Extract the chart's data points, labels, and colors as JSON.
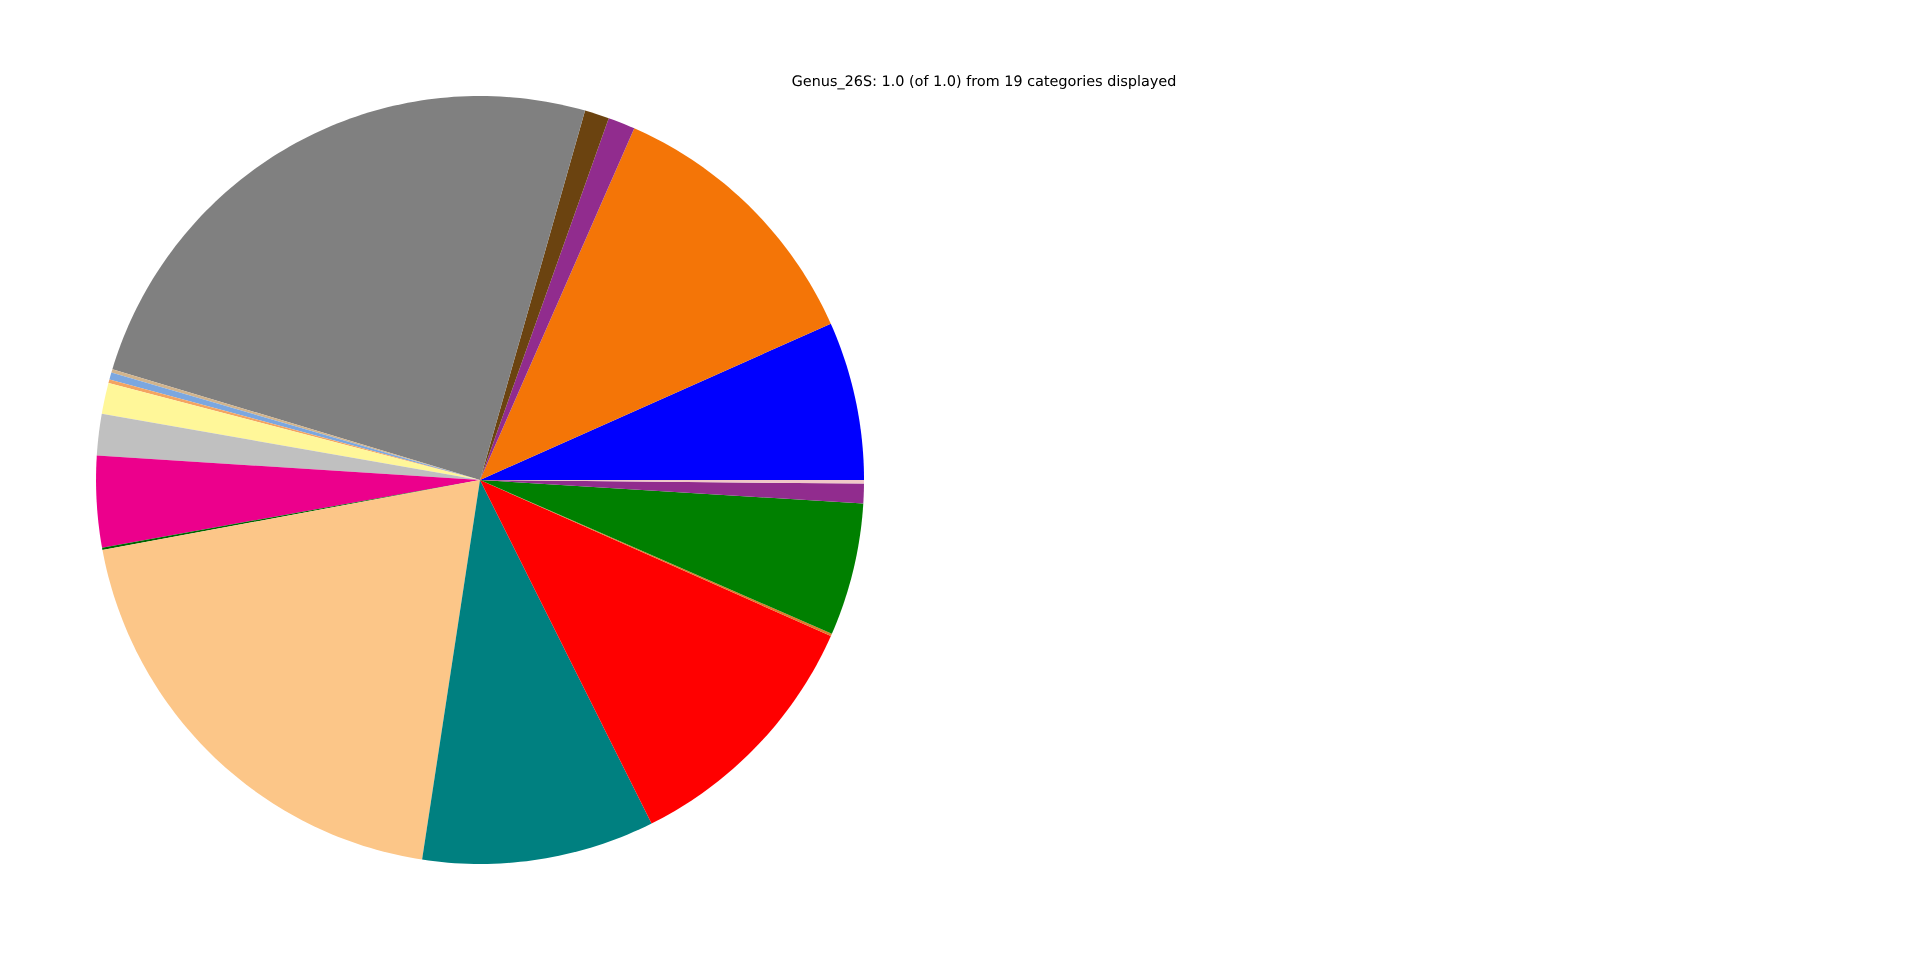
{
  "chart_data": {
    "type": "pie",
    "title": "Genus_26S: 1.0 (of 1.0) from 19 categories displayed",
    "categories": [
      null,
      null,
      null,
      null,
      null,
      null,
      null,
      null,
      null,
      null,
      null,
      null,
      null,
      null,
      null,
      null,
      null,
      null,
      null
    ],
    "values": [
      6.67,
      11.75,
      1.14,
      1.03,
      24.75,
      0.15,
      0.3,
      0.15,
      1.3,
      1.75,
      3.83,
      0.1,
      19.67,
      9.78,
      10.97,
      0.1,
      5.58,
      0.83,
      0.15
    ],
    "colors": [
      "#0000ff",
      "#f47507",
      "#912c8e",
      "#6b4310",
      "#808080",
      "#d2b48c",
      "#7ba7e0",
      "#f4a460",
      "#fff799",
      "#c0c0c0",
      "#ec008c",
      "#006400",
      "#fcc688",
      "#008080",
      "#ff0000",
      "#e07a2a",
      "#008000",
      "#912c8e",
      "#f0c8c8"
    ]
  }
}
